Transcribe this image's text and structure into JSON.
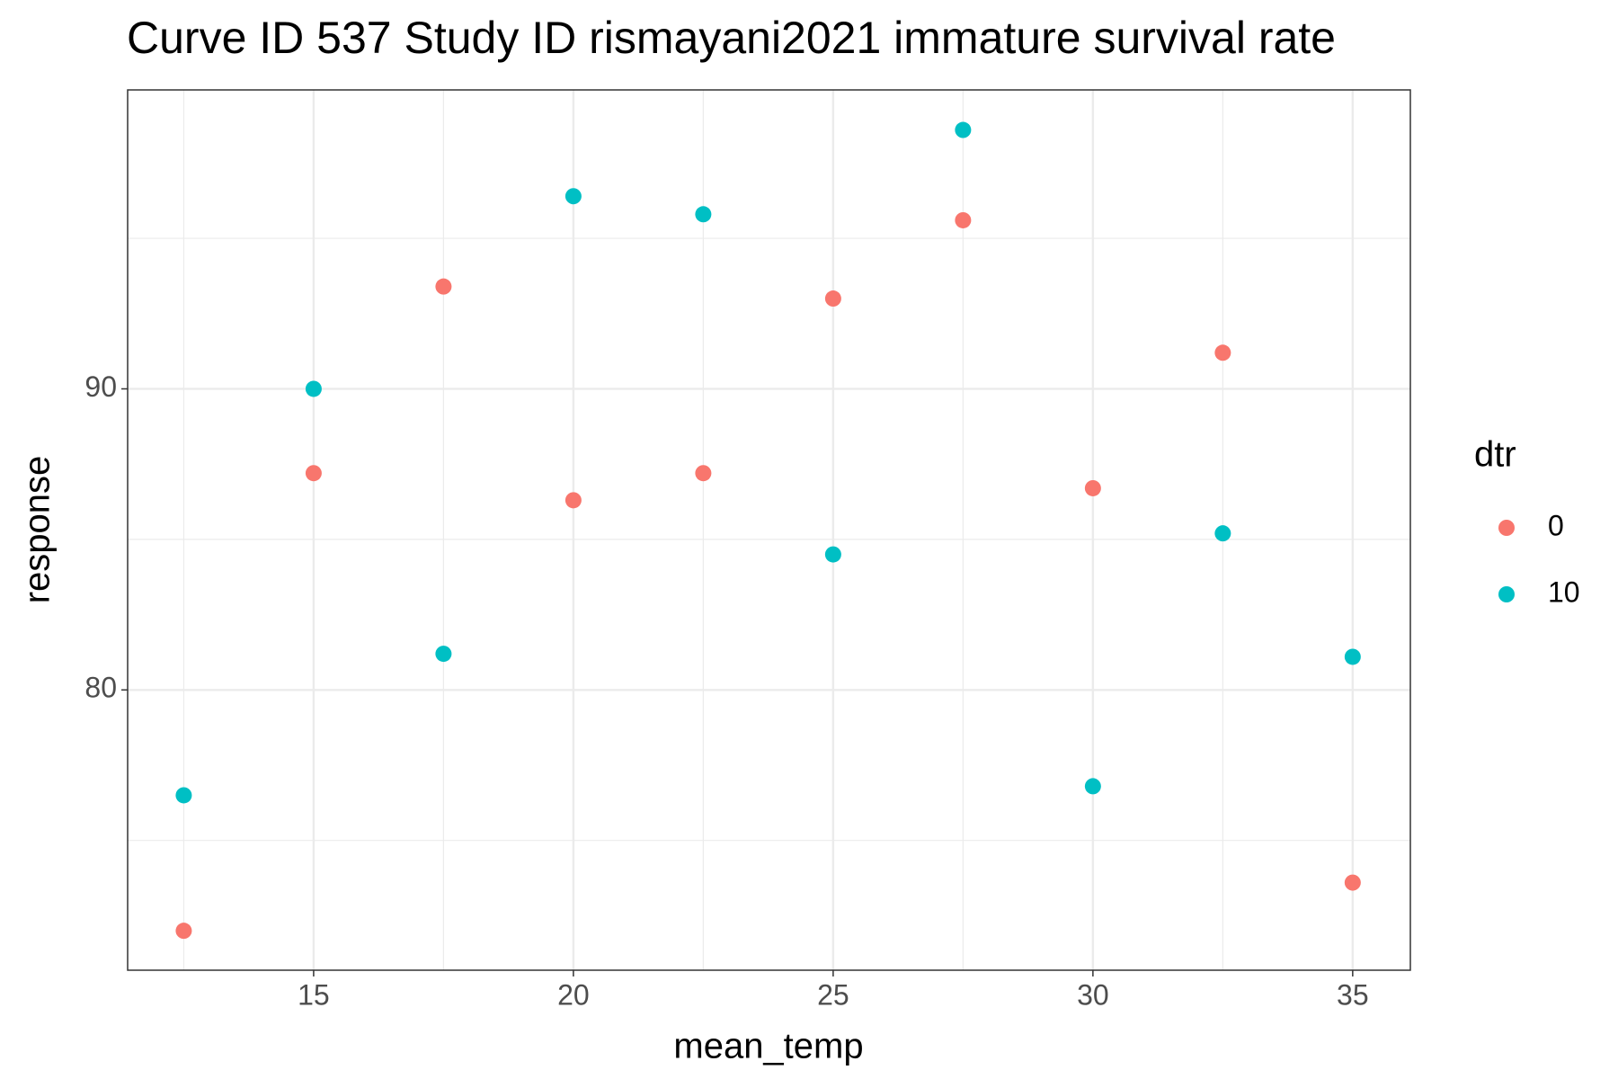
{
  "chart_data": {
    "type": "scatter",
    "title": "Curve ID 537 Study ID rismayani2021 immature survival rate",
    "x_label": "mean_temp",
    "y_label": "response",
    "legend_title": "dtr",
    "x": [
      12.5,
      15,
      17.5,
      20,
      22.5,
      25,
      27.5,
      30,
      32.5,
      35
    ],
    "series": [
      {
        "name": "0",
        "color": "#f8766d",
        "values": [
          72.0,
          87.2,
          93.4,
          86.3,
          87.2,
          93.0,
          95.6,
          86.7,
          91.2,
          73.6
        ]
      },
      {
        "name": "10",
        "color": "#00bfc4",
        "values": [
          76.5,
          90.0,
          81.2,
          96.4,
          95.8,
          84.5,
          98.6,
          76.8,
          85.2,
          81.1
        ]
      }
    ],
    "xlim": [
      11.42,
      36.11
    ],
    "ylim": [
      70.69,
      99.93
    ],
    "xticks": [
      15,
      20,
      25,
      30,
      35
    ],
    "yticks": [
      80,
      90
    ],
    "grid": true
  }
}
